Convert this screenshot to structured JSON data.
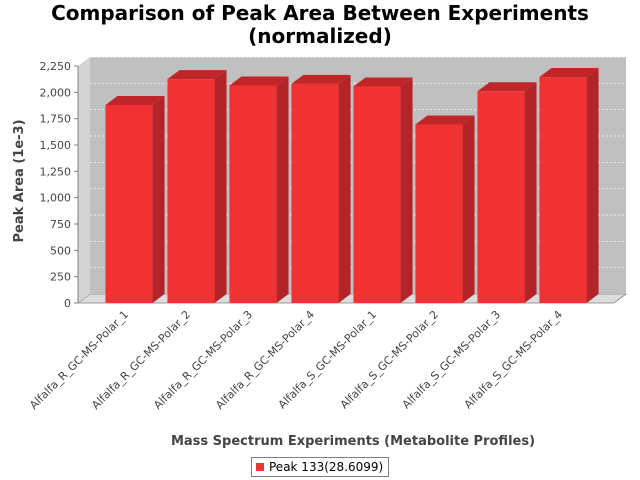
{
  "colors": {
    "bar_front": "#F03234",
    "bar_side": "#B22427",
    "bar_top": "#C02628",
    "plot_back": "#C0C0C0",
    "plot_floor": "#DCDCDC",
    "gridline": "#FFFFFF"
  },
  "chart_data": {
    "type": "bar",
    "title": "Comparison of Peak Area Between Experiments",
    "subtitle": "(normalized)",
    "xlabel": "Mass Spectrum Experiments (Metabolite Profiles)",
    "ylabel": "Peak Area (1e-3)",
    "ylim": [
      0,
      2250
    ],
    "yticks": [
      0,
      250,
      500,
      750,
      1000,
      1250,
      1500,
      1750,
      2000,
      2250
    ],
    "ytick_labels": [
      "0",
      "250",
      "500",
      "750",
      "1,000",
      "1,250",
      "1,500",
      "1,750",
      "2,000",
      "2,250"
    ],
    "grid": true,
    "legend_position": "bottom",
    "categories": [
      "Alfalfa_R_GC-MS-Polar_1",
      "Alfalfa_R_GC-MS-Polar_2",
      "Alfalfa_R_GC-MS-Polar_3",
      "Alfalfa_R_GC-MS-Polar_4",
      "Alfalfa_S_GC-MS-Polar_1",
      "Alfalfa_S_GC-MS-Polar_2",
      "Alfalfa_S_GC-MS-Polar_3",
      "Alfalfa_S_GC-MS-Polar_4"
    ],
    "series": [
      {
        "name": "Peak 133(28.6099)",
        "values": [
          1880,
          2125,
          2065,
          2080,
          2055,
          1695,
          2010,
          2145
        ]
      }
    ]
  }
}
